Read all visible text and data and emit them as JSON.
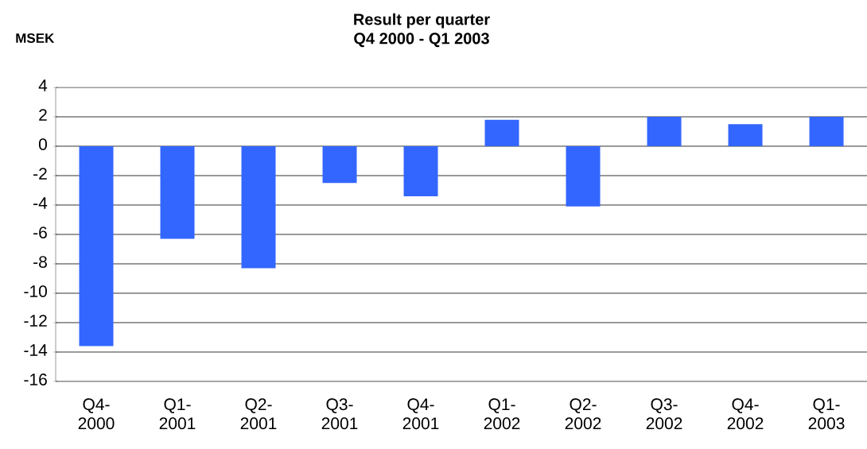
{
  "chart_data": {
    "type": "bar",
    "title": "Result per quarter",
    "subtitle": "Q4 2000 - Q1 2003",
    "ylabel": "MSEK",
    "categories": [
      "Q4-2000",
      "Q1-2001",
      "Q2-2001",
      "Q3-2001",
      "Q4-2001",
      "Q1-2002",
      "Q2-2002",
      "Q3-2002",
      "Q4-2002",
      "Q1-2003"
    ],
    "values": [
      -13.6,
      -6.3,
      -8.3,
      -2.5,
      -3.4,
      1.8,
      -4.1,
      2.0,
      1.5,
      2.0
    ],
    "color": "#3366ff",
    "ylim": [
      -16,
      4
    ],
    "yticks": [
      -16,
      -14,
      -12,
      -10,
      -8,
      -6,
      -4,
      -2,
      0,
      2,
      4
    ],
    "grid": "y"
  }
}
